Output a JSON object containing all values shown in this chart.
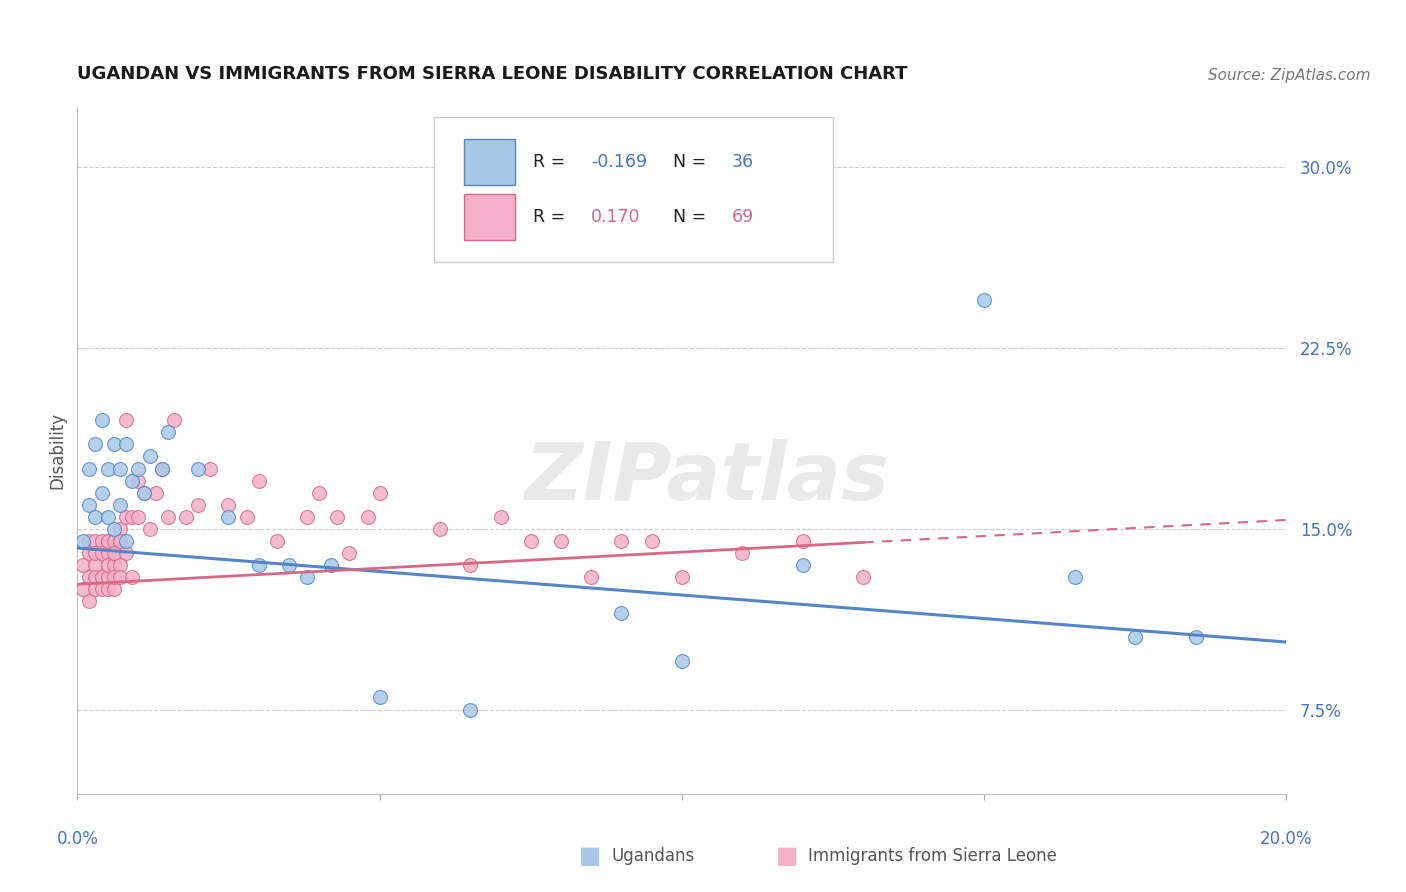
{
  "title": "UGANDAN VS IMMIGRANTS FROM SIERRA LEONE DISABILITY CORRELATION CHART",
  "source": "Source: ZipAtlas.com",
  "ylabel": "Disability",
  "color_blue": "#a8c8e8",
  "color_pink": "#f4b0c8",
  "color_blue_line": "#5585c8",
  "color_pink_line": "#d86888",
  "watermark": "ZIPatlas",
  "xlim": [
    0.0,
    0.2
  ],
  "ylim": [
    0.04,
    0.325
  ],
  "y_ticks": [
    0.075,
    0.15,
    0.225,
    0.3
  ],
  "y_tick_labels": [
    "7.5%",
    "15.0%",
    "22.5%",
    "30.0%"
  ],
  "legend_r_blue": "-0.169",
  "legend_n_blue": "36",
  "legend_r_pink": "0.170",
  "legend_n_pink": "69",
  "ugandan_x": [
    0.001,
    0.002,
    0.002,
    0.003,
    0.003,
    0.004,
    0.004,
    0.005,
    0.005,
    0.006,
    0.006,
    0.007,
    0.007,
    0.008,
    0.008,
    0.009,
    0.01,
    0.011,
    0.012,
    0.014,
    0.015,
    0.02,
    0.025,
    0.03,
    0.035,
    0.038,
    0.042,
    0.05,
    0.065,
    0.09,
    0.1,
    0.12,
    0.15,
    0.165,
    0.175,
    0.185
  ],
  "ugandan_y": [
    0.145,
    0.16,
    0.175,
    0.155,
    0.185,
    0.165,
    0.195,
    0.155,
    0.175,
    0.185,
    0.15,
    0.175,
    0.16,
    0.185,
    0.145,
    0.17,
    0.175,
    0.165,
    0.18,
    0.175,
    0.19,
    0.175,
    0.155,
    0.135,
    0.135,
    0.13,
    0.135,
    0.08,
    0.075,
    0.115,
    0.095,
    0.135,
    0.245,
    0.13,
    0.105,
    0.105
  ],
  "sierra_leone_x": [
    0.001,
    0.001,
    0.002,
    0.002,
    0.002,
    0.002,
    0.003,
    0.003,
    0.003,
    0.003,
    0.003,
    0.004,
    0.004,
    0.004,
    0.004,
    0.005,
    0.005,
    0.005,
    0.005,
    0.005,
    0.005,
    0.006,
    0.006,
    0.006,
    0.006,
    0.006,
    0.007,
    0.007,
    0.007,
    0.007,
    0.007,
    0.008,
    0.008,
    0.008,
    0.009,
    0.009,
    0.01,
    0.01,
    0.011,
    0.012,
    0.013,
    0.014,
    0.015,
    0.016,
    0.018,
    0.02,
    0.022,
    0.025,
    0.028,
    0.03,
    0.033,
    0.038,
    0.04,
    0.043,
    0.045,
    0.048,
    0.05,
    0.06,
    0.065,
    0.07,
    0.075,
    0.08,
    0.085,
    0.09,
    0.095,
    0.1,
    0.11,
    0.12,
    0.13
  ],
  "sierra_leone_y": [
    0.135,
    0.125,
    0.14,
    0.13,
    0.145,
    0.12,
    0.135,
    0.13,
    0.145,
    0.125,
    0.14,
    0.145,
    0.13,
    0.14,
    0.125,
    0.14,
    0.13,
    0.145,
    0.125,
    0.135,
    0.145,
    0.135,
    0.125,
    0.145,
    0.13,
    0.14,
    0.15,
    0.135,
    0.145,
    0.13,
    0.145,
    0.155,
    0.195,
    0.14,
    0.155,
    0.13,
    0.17,
    0.155,
    0.165,
    0.15,
    0.165,
    0.175,
    0.155,
    0.195,
    0.155,
    0.16,
    0.175,
    0.16,
    0.155,
    0.17,
    0.145,
    0.155,
    0.165,
    0.155,
    0.14,
    0.155,
    0.165,
    0.15,
    0.135,
    0.155,
    0.145,
    0.145,
    0.13,
    0.145,
    0.145,
    0.13,
    0.14,
    0.145,
    0.13
  ]
}
